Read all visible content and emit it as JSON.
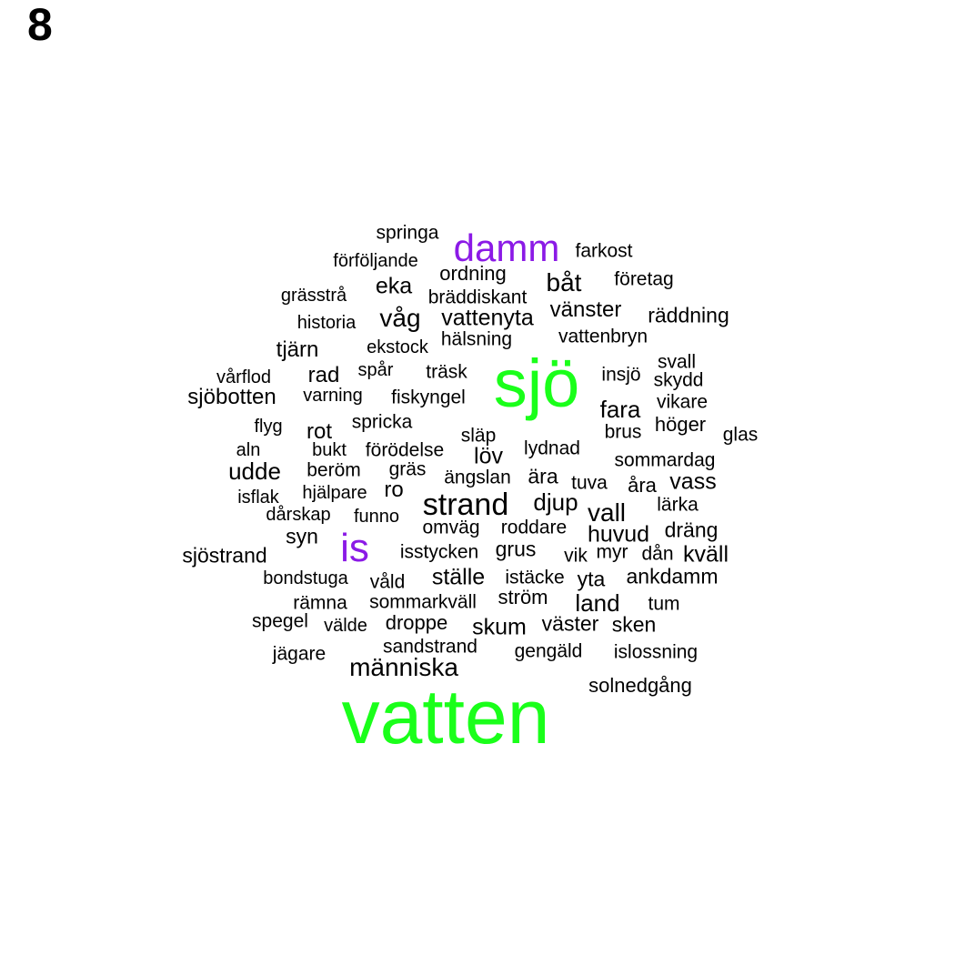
{
  "panel_label": "8",
  "colors": {
    "top": "#1aff1a",
    "second": "#8b1ae6",
    "default": "#000000"
  },
  "words": [
    {
      "text": "vatten",
      "level": "top"
    },
    {
      "text": "sjö",
      "level": "top"
    },
    {
      "text": "damm",
      "level": "second"
    },
    {
      "text": "is",
      "level": "second"
    },
    {
      "text": "strand",
      "level": "default"
    },
    {
      "text": "människa",
      "level": "default"
    },
    {
      "text": "våg",
      "level": "default"
    },
    {
      "text": "vattenyta",
      "level": "default"
    },
    {
      "text": "båt",
      "level": "default"
    },
    {
      "text": "vall",
      "level": "default"
    },
    {
      "text": "udde",
      "level": "default"
    },
    {
      "text": "djup",
      "level": "default"
    },
    {
      "text": "fara",
      "level": "default"
    },
    {
      "text": "skum",
      "level": "default"
    },
    {
      "text": "ställe",
      "level": "default"
    },
    {
      "text": "land",
      "level": "default"
    },
    {
      "text": "huvud",
      "level": "default"
    },
    {
      "text": "vass",
      "level": "default"
    },
    {
      "text": "kväll",
      "level": "default"
    },
    {
      "text": "löv",
      "level": "default"
    },
    {
      "text": "rot",
      "level": "default"
    },
    {
      "text": "eka",
      "level": "default"
    },
    {
      "text": "tjärn",
      "level": "default"
    },
    {
      "text": "rad",
      "level": "default"
    },
    {
      "text": "sjöbotten",
      "level": "default"
    },
    {
      "text": "sjöstrand",
      "level": "default"
    },
    {
      "text": "vänster",
      "level": "default"
    },
    {
      "text": "räddning",
      "level": "default"
    },
    {
      "text": "höger",
      "level": "default"
    },
    {
      "text": "ankdamm",
      "level": "default"
    },
    {
      "text": "dräng",
      "level": "default"
    },
    {
      "text": "grus",
      "level": "default"
    },
    {
      "text": "yta",
      "level": "default"
    },
    {
      "text": "ära",
      "level": "default"
    },
    {
      "text": "åra",
      "level": "default"
    },
    {
      "text": "ordning",
      "level": "default"
    },
    {
      "text": "springa",
      "level": "default"
    },
    {
      "text": "farkost",
      "level": "default"
    },
    {
      "text": "förföljande",
      "level": "default"
    },
    {
      "text": "företag",
      "level": "default"
    },
    {
      "text": "grässtrå",
      "level": "default"
    },
    {
      "text": "bräddiskant",
      "level": "default"
    },
    {
      "text": "historia",
      "level": "default"
    },
    {
      "text": "hälsning",
      "level": "default"
    },
    {
      "text": "vattenbryn",
      "level": "default"
    },
    {
      "text": "ekstock",
      "level": "default"
    },
    {
      "text": "svall",
      "level": "default"
    },
    {
      "text": "vårflod",
      "level": "default"
    },
    {
      "text": "spår",
      "level": "default"
    },
    {
      "text": "träsk",
      "level": "default"
    },
    {
      "text": "insjö",
      "level": "default"
    },
    {
      "text": "skydd",
      "level": "default"
    },
    {
      "text": "varning",
      "level": "default"
    },
    {
      "text": "fiskyngel",
      "level": "default"
    },
    {
      "text": "vikare",
      "level": "default"
    },
    {
      "text": "flyg",
      "level": "default"
    },
    {
      "text": "spricka",
      "level": "default"
    },
    {
      "text": "släp",
      "level": "default"
    },
    {
      "text": "brus",
      "level": "default"
    },
    {
      "text": "glas",
      "level": "default"
    },
    {
      "text": "aln",
      "level": "default"
    },
    {
      "text": "bukt",
      "level": "default"
    },
    {
      "text": "förödelse",
      "level": "default"
    },
    {
      "text": "lydnad",
      "level": "default"
    },
    {
      "text": "sommardag",
      "level": "default"
    },
    {
      "text": "beröm",
      "level": "default"
    },
    {
      "text": "gräs",
      "level": "default"
    },
    {
      "text": "ängslan",
      "level": "default"
    },
    {
      "text": "tuva",
      "level": "default"
    },
    {
      "text": "isflak",
      "level": "default"
    },
    {
      "text": "hjälpare",
      "level": "default"
    },
    {
      "text": "ro",
      "level": "default"
    },
    {
      "text": "lärka",
      "level": "default"
    },
    {
      "text": "dårskap",
      "level": "default"
    },
    {
      "text": "funno",
      "level": "default"
    },
    {
      "text": "omväg",
      "level": "default"
    },
    {
      "text": "roddare",
      "level": "default"
    },
    {
      "text": "syn",
      "level": "default"
    },
    {
      "text": "isstycken",
      "level": "default"
    },
    {
      "text": "vik",
      "level": "default"
    },
    {
      "text": "myr",
      "level": "default"
    },
    {
      "text": "dån",
      "level": "default"
    },
    {
      "text": "bondstuga",
      "level": "default"
    },
    {
      "text": "våld",
      "level": "default"
    },
    {
      "text": "istäcke",
      "level": "default"
    },
    {
      "text": "rämna",
      "level": "default"
    },
    {
      "text": "sommarkväll",
      "level": "default"
    },
    {
      "text": "ström",
      "level": "default"
    },
    {
      "text": "tum",
      "level": "default"
    },
    {
      "text": "spegel",
      "level": "default"
    },
    {
      "text": "välde",
      "level": "default"
    },
    {
      "text": "droppe",
      "level": "default"
    },
    {
      "text": "väster",
      "level": "default"
    },
    {
      "text": "sken",
      "level": "default"
    },
    {
      "text": "sandstrand",
      "level": "default"
    },
    {
      "text": "gengäld",
      "level": "default"
    },
    {
      "text": "islossning",
      "level": "default"
    },
    {
      "text": "jägare",
      "level": "default"
    },
    {
      "text": "solnedgång",
      "level": "default"
    }
  ]
}
